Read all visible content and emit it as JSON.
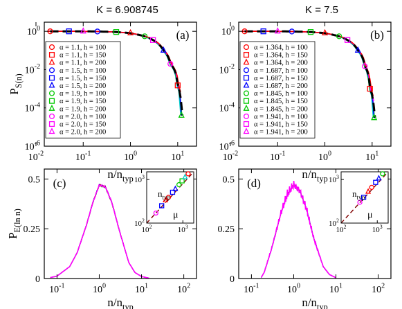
{
  "colors": {
    "red": "#ff0000",
    "blue": "#0000ff",
    "green": "#00c800",
    "magenta": "#ff00ff",
    "cyan": "#00c8c8",
    "black": "#000000",
    "maroon": "#800000"
  },
  "chart_data": [
    {
      "type": "line",
      "panel": "(a)",
      "title": "K = 6.908745",
      "xlabel": "n/n_typ",
      "ylabel": "P_S(n)",
      "xscale": "log",
      "yscale": "log",
      "xlim": [
        0.015,
        25
      ],
      "ylim": [
        1e-06,
        3
      ],
      "x_ticks": [
        "10^-2",
        "10^-1",
        "10^0",
        "10^1"
      ],
      "y_ticks": [
        "10^-6",
        "10^-4",
        "10^-2",
        "10^0"
      ],
      "legend_position": "bottom-left",
      "legend": [
        "α = 1.1, h = 100",
        "α = 1.1, h = 150",
        "α = 1.1, h = 200",
        "α = 1.5, h = 100",
        "α = 1.5, h = 150",
        "α = 1.5, h = 200",
        "α = 1.9, h = 100",
        "α = 1.9, h = 150",
        "α = 1.9, h = 200",
        "α = 2.0, h = 100",
        "α = 2.0, h = 150",
        "α = 2.0, h = 200"
      ],
      "x": [
        0.02,
        0.05,
        0.1,
        0.2,
        0.5,
        1,
        2,
        3,
        5,
        7,
        10,
        12
      ],
      "y": [
        1,
        0.999,
        0.995,
        0.98,
        0.92,
        0.8,
        0.55,
        0.35,
        0.1,
        0.02,
        0.0015,
        4e-05
      ]
    },
    {
      "type": "line",
      "panel": "(b)",
      "title": "K = 7.5",
      "xlabel": "n/n_typ",
      "ylabel": "",
      "xscale": "log",
      "yscale": "log",
      "xlim": [
        0.015,
        25
      ],
      "ylim": [
        1e-06,
        3
      ],
      "x_ticks": [
        "10^-2",
        "10^-1",
        "10^0",
        "10^1"
      ],
      "y_ticks": [
        "10^-6",
        "10^-4",
        "10^-2",
        "10^0"
      ],
      "legend_position": "bottom-left",
      "legend": [
        "α = 1.364, h = 100",
        "α = 1.364, h = 150",
        "α = 1.364, h = 200",
        "α = 1.687, h = 100",
        "α = 1.687, h = 150",
        "α = 1.687, h = 200",
        "α = 1.845, h = 100",
        "α = 1.845, h = 150",
        "α = 1.845, h = 200",
        "α = 1.941, h = 100",
        "α = 1.941, h = 150",
        "α = 1.941, h = 200"
      ],
      "x": [
        0.02,
        0.05,
        0.1,
        0.2,
        0.5,
        1,
        2,
        3,
        5,
        7,
        9,
        11
      ],
      "y": [
        1,
        0.999,
        0.995,
        0.98,
        0.92,
        0.8,
        0.55,
        0.35,
        0.1,
        0.015,
        0.001,
        3e-05
      ]
    },
    {
      "type": "line",
      "panel": "(c)",
      "xlabel": "n/n_typ",
      "ylabel": "P_E(ln n)",
      "xscale": "log",
      "xlim": [
        0.05,
        200
      ],
      "ylim": [
        0,
        0.55
      ],
      "x_ticks": [
        "10^-1",
        "10^0",
        "10^1",
        "10^2"
      ],
      "y_ticks": [
        "0",
        "0.25",
        "0.5"
      ],
      "x": [
        0.07,
        0.1,
        0.2,
        0.3,
        0.5,
        0.7,
        1,
        1.4,
        2,
        3,
        5,
        7,
        10,
        15
      ],
      "y": [
        0.005,
        0.012,
        0.06,
        0.13,
        0.27,
        0.38,
        0.47,
        0.46,
        0.38,
        0.24,
        0.08,
        0.03,
        0.01,
        0.002
      ],
      "inset": {
        "xscale": "log",
        "yscale": "log",
        "xlabel": "μ",
        "ylabel": "n_typ",
        "xlim": [
          100,
          2000
        ],
        "ylim": [
          100,
          1500
        ],
        "x_ticks": [
          "10^2",
          "10^3"
        ],
        "y_ticks": [
          "10^2",
          "10^3"
        ],
        "points": [
          [
            180,
            170
          ],
          [
            260,
            250
          ],
          [
            330,
            330
          ],
          [
            400,
            390
          ],
          [
            520,
            510
          ],
          [
            620,
            600
          ],
          [
            780,
            760
          ],
          [
            950,
            930
          ],
          [
            1150,
            1120
          ],
          [
            1400,
            1350
          ]
        ]
      }
    },
    {
      "type": "line",
      "panel": "(d)",
      "xlabel": "n/n_typ",
      "ylabel": "",
      "xscale": "log",
      "xlim": [
        0.05,
        200
      ],
      "ylim": [
        0,
        0.55
      ],
      "x_ticks": [
        "10^-1",
        "10^0",
        "10^1",
        "10^2"
      ],
      "y_ticks": [
        "0",
        "0.25",
        "0.5"
      ],
      "x": [
        0.17,
        0.2,
        0.3,
        0.5,
        0.7,
        1,
        1.4,
        2,
        3,
        5,
        7,
        10
      ],
      "y": [
        0.005,
        0.03,
        0.15,
        0.33,
        0.42,
        0.47,
        0.44,
        0.35,
        0.2,
        0.06,
        0.02,
        0.004
      ],
      "inset": {
        "xscale": "log",
        "yscale": "log",
        "xlabel": "μ",
        "ylabel": "n_typ",
        "xlim": [
          100,
          2000
        ],
        "ylim": [
          100,
          1500
        ],
        "x_ticks": [
          "10^2",
          "10^3"
        ],
        "y_ticks": [
          "10^2",
          "10^3"
        ],
        "points": [
          [
            330,
            300
          ],
          [
            420,
            390
          ],
          [
            560,
            520
          ],
          [
            700,
            660
          ],
          [
            900,
            860
          ],
          [
            1100,
            1050
          ],
          [
            1400,
            1350
          ]
        ]
      }
    }
  ]
}
